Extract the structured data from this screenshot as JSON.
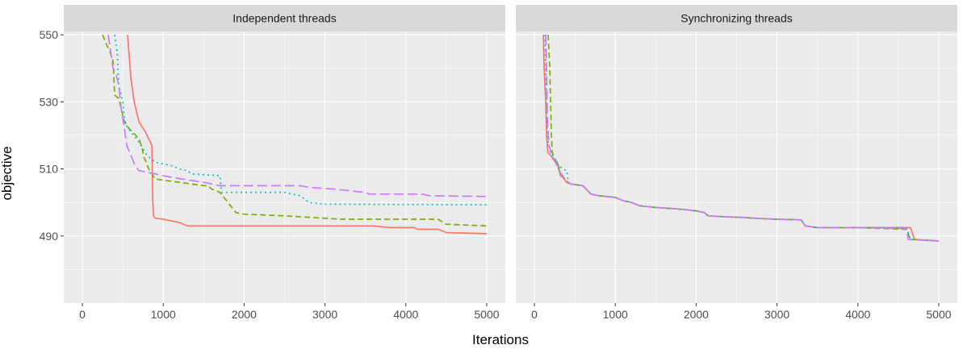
{
  "chart_data": {
    "type": "line",
    "xlabel": "Iterations",
    "ylabel": "objective",
    "xlim": [
      -230,
      5230
    ],
    "ylim": [
      470,
      551
    ],
    "x_ticks": [
      0,
      1000,
      2000,
      3000,
      4000,
      5000
    ],
    "y_ticks": [
      490,
      510,
      530,
      550
    ],
    "grid": true,
    "legend": "none",
    "colors": {
      "panel_bg": "#ebebeb",
      "strip_bg": "#d9d9d9",
      "grid": "#ffffff"
    },
    "panels": [
      {
        "title": "Independent threads",
        "series": [
          {
            "color": "#f8766d",
            "dash": "",
            "points": [
              [
                560,
                550
              ],
              [
                600,
                537
              ],
              [
                640,
                530
              ],
              [
                700,
                524
              ],
              [
                780,
                521
              ],
              [
                860,
                517
              ],
              [
                870,
                501
              ],
              [
                880,
                496
              ],
              [
                900,
                495.3
              ],
              [
                1000,
                495
              ],
              [
                1200,
                494
              ],
              [
                1300,
                493
              ],
              [
                2000,
                493
              ],
              [
                3000,
                493
              ],
              [
                3600,
                493
              ],
              [
                3800,
                492.5
              ],
              [
                4100,
                492.5
              ],
              [
                4150,
                492
              ],
              [
                4400,
                492
              ],
              [
                4500,
                491
              ],
              [
                5000,
                490.7
              ]
            ]
          },
          {
            "color": "#7cae00",
            "dash": "7,4",
            "points": [
              [
                250,
                550
              ],
              [
                300,
                547
              ],
              [
                340,
                545
              ],
              [
                380,
                542
              ],
              [
                400,
                532
              ],
              [
                450,
                531
              ],
              [
                480,
                528
              ],
              [
                520,
                524
              ],
              [
                580,
                522
              ],
              [
                700,
                519
              ],
              [
                740,
                516
              ],
              [
                760,
                513.5
              ],
              [
                790,
                512
              ],
              [
                820,
                510
              ],
              [
                850,
                509
              ],
              [
                900,
                507
              ],
              [
                1200,
                506
              ],
              [
                1500,
                505
              ],
              [
                1550,
                505
              ],
              [
                1600,
                504
              ],
              [
                1700,
                503
              ],
              [
                1800,
                500
              ],
              [
                1900,
                497
              ],
              [
                2000,
                496.5
              ],
              [
                2500,
                496
              ],
              [
                3200,
                495
              ],
              [
                4400,
                495
              ],
              [
                4500,
                493.5
              ],
              [
                5000,
                493
              ]
            ]
          },
          {
            "color": "#00bfc4",
            "dash": "2,4",
            "points": [
              [
                400,
                550
              ],
              [
                430,
                545
              ],
              [
                450,
                535
              ],
              [
                470,
                533
              ],
              [
                500,
                530
              ],
              [
                520,
                525
              ],
              [
                540,
                523
              ],
              [
                600,
                521
              ],
              [
                700,
                518
              ],
              [
                800,
                514
              ],
              [
                900,
                512
              ],
              [
                1100,
                511
              ],
              [
                1200,
                510
              ],
              [
                1300,
                509.5
              ],
              [
                1350,
                508.5
              ],
              [
                1700,
                508
              ],
              [
                1720,
                503
              ],
              [
                2500,
                503
              ],
              [
                2700,
                502
              ],
              [
                2800,
                500
              ],
              [
                3000,
                499.5
              ],
              [
                5000,
                499.3
              ]
            ]
          },
          {
            "color": "#c77cff",
            "dash": "12,5",
            "points": [
              [
                320,
                550
              ],
              [
                350,
                545
              ],
              [
                380,
                540
              ],
              [
                420,
                538
              ],
              [
                450,
                535
              ],
              [
                480,
                528
              ],
              [
                520,
                522
              ],
              [
                550,
                517
              ],
              [
                600,
                514
              ],
              [
                650,
                511
              ],
              [
                700,
                509.5
              ],
              [
                800,
                509
              ],
              [
                1000,
                508
              ],
              [
                1100,
                507.5
              ],
              [
                1500,
                506
              ],
              [
                1700,
                505
              ],
              [
                2700,
                505
              ],
              [
                2800,
                504.5
              ],
              [
                3100,
                504
              ],
              [
                3500,
                503
              ],
              [
                3550,
                502.5
              ],
              [
                4200,
                502.5
              ],
              [
                4300,
                502
              ],
              [
                5000,
                501.8
              ]
            ]
          }
        ]
      },
      {
        "title": "Synchronizing threads",
        "series": [
          {
            "color": "#f8766d",
            "dash": "",
            "points": [
              [
                110,
                550
              ],
              [
                120,
                540
              ],
              [
                140,
                530
              ],
              [
                150,
                520
              ],
              [
                165,
                515
              ],
              [
                200,
                514
              ],
              [
                230,
                513
              ],
              [
                260,
                512
              ],
              [
                300,
                511
              ],
              [
                320,
                508
              ],
              [
                350,
                507.5
              ],
              [
                400,
                506
              ],
              [
                450,
                505.5
              ],
              [
                600,
                505
              ],
              [
                700,
                502.5
              ],
              [
                800,
                502
              ],
              [
                1000,
                501.5
              ],
              [
                1050,
                501
              ],
              [
                1100,
                500.5
              ],
              [
                1200,
                500
              ],
              [
                1300,
                499
              ],
              [
                1500,
                498.5
              ],
              [
                1800,
                498
              ],
              [
                2000,
                497.5
              ],
              [
                2100,
                497
              ],
              [
                2150,
                496
              ],
              [
                2300,
                495.8
              ],
              [
                2600,
                495.5
              ],
              [
                2800,
                495.2
              ],
              [
                3000,
                495
              ],
              [
                3300,
                494.8
              ],
              [
                3350,
                493
              ],
              [
                3500,
                492.5
              ],
              [
                4000,
                492.5
              ],
              [
                4650,
                492.5
              ],
              [
                4700,
                489
              ],
              [
                5000,
                488.5
              ]
            ]
          },
          {
            "color": "#7cae00",
            "dash": "7,4",
            "points": [
              [
                170,
                550
              ],
              [
                180,
                545
              ],
              [
                190,
                540
              ],
              [
                200,
                530
              ],
              [
                210,
                520
              ],
              [
                220,
                515
              ],
              [
                250,
                513
              ],
              [
                280,
                512
              ],
              [
                310,
                509
              ],
              [
                350,
                508
              ],
              [
                400,
                506
              ],
              [
                450,
                505.5
              ],
              [
                600,
                505
              ],
              [
                700,
                502.5
              ],
              [
                800,
                502
              ],
              [
                1000,
                501.5
              ],
              [
                1050,
                501
              ],
              [
                1100,
                500.5
              ],
              [
                1200,
                500
              ],
              [
                1300,
                499
              ],
              [
                1500,
                498.5
              ],
              [
                1800,
                498
              ],
              [
                2000,
                497.5
              ],
              [
                2100,
                497
              ],
              [
                2150,
                496
              ],
              [
                2300,
                495.8
              ],
              [
                2600,
                495.5
              ],
              [
                2800,
                495.2
              ],
              [
                3000,
                495
              ],
              [
                3300,
                494.8
              ],
              [
                3350,
                493
              ],
              [
                3500,
                492.5
              ],
              [
                4000,
                492.5
              ],
              [
                4600,
                492
              ],
              [
                4650,
                489
              ],
              [
                5000,
                488.5
              ]
            ]
          },
          {
            "color": "#00bfc4",
            "dash": "2,4",
            "points": [
              [
                130,
                550
              ],
              [
                140,
                540
              ],
              [
                150,
                525
              ],
              [
                170,
                518
              ],
              [
                200,
                515
              ],
              [
                250,
                513
              ],
              [
                300,
                511
              ],
              [
                350,
                510
              ],
              [
                400,
                509.5
              ],
              [
                420,
                506
              ],
              [
                450,
                505.5
              ],
              [
                600,
                505
              ],
              [
                700,
                502.5
              ],
              [
                800,
                502
              ],
              [
                1000,
                501.5
              ],
              [
                1050,
                501
              ],
              [
                1100,
                500.5
              ],
              [
                1200,
                500
              ],
              [
                1300,
                499
              ],
              [
                1500,
                498.5
              ],
              [
                1800,
                498
              ],
              [
                2000,
                497.5
              ],
              [
                2100,
                497
              ],
              [
                2150,
                496
              ],
              [
                2300,
                495.8
              ],
              [
                2600,
                495.5
              ],
              [
                2800,
                495.2
              ],
              [
                3000,
                495
              ],
              [
                3300,
                494.8
              ],
              [
                3350,
                493
              ],
              [
                3500,
                492.5
              ],
              [
                4000,
                492.5
              ],
              [
                4600,
                492.5
              ],
              [
                4650,
                489
              ],
              [
                5000,
                488.5
              ]
            ]
          },
          {
            "color": "#c77cff",
            "dash": "12,5",
            "points": [
              [
                140,
                550
              ],
              [
                150,
                540
              ],
              [
                160,
                525
              ],
              [
                180,
                517
              ],
              [
                220,
                514
              ],
              [
                260,
                512
              ],
              [
                300,
                510
              ],
              [
                340,
                508
              ],
              [
                380,
                507
              ],
              [
                420,
                506
              ],
              [
                450,
                505.5
              ],
              [
                600,
                505
              ],
              [
                700,
                502.5
              ],
              [
                800,
                502
              ],
              [
                1000,
                501.5
              ],
              [
                1050,
                501
              ],
              [
                1100,
                500.5
              ],
              [
                1200,
                500
              ],
              [
                1300,
                499
              ],
              [
                1500,
                498.5
              ],
              [
                1800,
                498
              ],
              [
                2000,
                497.5
              ],
              [
                2100,
                497
              ],
              [
                2150,
                496
              ],
              [
                2300,
                495.8
              ],
              [
                2600,
                495.5
              ],
              [
                2800,
                495.2
              ],
              [
                3000,
                495
              ],
              [
                3300,
                494.8
              ],
              [
                3350,
                493
              ],
              [
                3500,
                492.5
              ],
              [
                4000,
                492.5
              ],
              [
                4600,
                492.2
              ],
              [
                4620,
                489
              ],
              [
                5000,
                488.5
              ]
            ]
          }
        ]
      }
    ]
  }
}
